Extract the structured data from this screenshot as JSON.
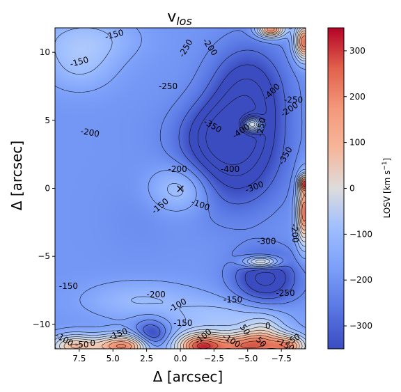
{
  "chart_data": {
    "type": "heatmap",
    "title": "v",
    "title_subscript": "los",
    "xlabel": "Δ [arcsec]",
    "ylabel": "Δ [arcsec]",
    "xlim": [
      9.3,
      -9.3
    ],
    "ylim": [
      -11.8,
      11.8
    ],
    "x_ticks": [
      7.5,
      5.0,
      2.5,
      0.0,
      -2.5,
      -5.0,
      -7.5
    ],
    "x_tick_labels": [
      "7.5",
      "5.0",
      "2.5",
      "0.0",
      "−2.5",
      "−5.0",
      "−7.5"
    ],
    "y_ticks": [
      10,
      5,
      0,
      -5,
      -10
    ],
    "y_tick_labels": [
      "10",
      "5",
      "0",
      "−5",
      "−10"
    ],
    "colormap": "coolwarm",
    "colorbar": {
      "label": "LOSV [km s",
      "label_sup": "−1",
      "label_end": "]",
      "range": [
        -350,
        350
      ],
      "ticks": [
        300,
        200,
        100,
        0,
        -100,
        -200,
        -300
      ],
      "tick_labels": [
        "300",
        "200",
        "100",
        "0",
        "−100",
        "−200",
        "−300"
      ]
    },
    "center_marker": {
      "x": 0,
      "y": 0,
      "symbol": "×"
    },
    "contour_labels": [
      {
        "text": "-150",
        "x": 4.9,
        "y": 11.3,
        "angle": -15
      },
      {
        "text": "-250",
        "x": -0.4,
        "y": 10.3,
        "angle": -60
      },
      {
        "text": "-200",
        "x": -2.2,
        "y": 10.4,
        "angle": 55
      },
      {
        "text": "-150",
        "x": 7.5,
        "y": 9.3,
        "angle": -15
      },
      {
        "text": "-250",
        "x": 0.9,
        "y": 7.5,
        "angle": 0
      },
      {
        "text": "-400",
        "x": -6.8,
        "y": 7.1,
        "angle": -45
      },
      {
        "text": "-250",
        "x": -8.4,
        "y": 6.5,
        "angle": 0
      },
      {
        "text": "-200",
        "x": -8.1,
        "y": 5.8,
        "angle": -35
      },
      {
        "text": "-200",
        "x": 6.7,
        "y": 4.1,
        "angle": 10
      },
      {
        "text": "-350",
        "x": -2.4,
        "y": 4.6,
        "angle": 30
      },
      {
        "text": "-400",
        "x": -4.5,
        "y": 4.2,
        "angle": -35
      },
      {
        "text": "-250",
        "x": -6.0,
        "y": 4.5,
        "angle": -80
      },
      {
        "text": "-350",
        "x": -7.8,
        "y": 2.4,
        "angle": -60
      },
      {
        "text": "-200",
        "x": 0.2,
        "y": 1.4,
        "angle": 0
      },
      {
        "text": "-400",
        "x": -3.7,
        "y": 1.4,
        "angle": 0
      },
      {
        "text": "-300",
        "x": -5.5,
        "y": 0.1,
        "angle": -20
      },
      {
        "text": "-150",
        "x": 1.5,
        "y": -1.3,
        "angle": -40
      },
      {
        "text": "-100",
        "x": -1.5,
        "y": -1.2,
        "angle": 20
      },
      {
        "text": "-300",
        "x": -6.4,
        "y": -3.9,
        "angle": 0
      },
      {
        "text": "-200",
        "x": -8.5,
        "y": -3.3,
        "angle": 85
      },
      {
        "text": "-150",
        "x": 8.3,
        "y": -7.2,
        "angle": 0
      },
      {
        "text": "-200",
        "x": 1.8,
        "y": -7.8,
        "angle": 0
      },
      {
        "text": "-150",
        "x": -3.9,
        "y": -8.2,
        "angle": 0
      },
      {
        "text": "-250",
        "x": -7.8,
        "y": -7.7,
        "angle": 0
      },
      {
        "text": "-100",
        "x": 0.2,
        "y": -8.6,
        "angle": -30
      },
      {
        "text": "-150",
        "x": -0.2,
        "y": -9.9,
        "angle": 0
      },
      {
        "text": "-100",
        "x": 8.6,
        "y": -11.1,
        "angle": 30
      },
      {
        "text": "-50",
        "x": 7.3,
        "y": -11.5,
        "angle": 0
      },
      {
        "text": "0",
        "x": 6.5,
        "y": -11.4,
        "angle": 0
      },
      {
        "text": "-150",
        "x": 4.6,
        "y": -10.7,
        "angle": -20
      },
      {
        "text": "-100",
        "x": -1.7,
        "y": -10.9,
        "angle": -40
      },
      {
        "text": "-100",
        "x": -3.8,
        "y": -11.2,
        "angle": 30
      },
      {
        "text": "50",
        "x": -4.8,
        "y": -10.4,
        "angle": 55
      },
      {
        "text": "0",
        "x": -6.5,
        "y": -10.1,
        "angle": 0
      },
      {
        "text": "50",
        "x": -6.0,
        "y": -11.3,
        "angle": 45
      },
      {
        "text": "-50",
        "x": -8.4,
        "y": -11.1,
        "angle": -30
      },
      {
        "text": "-150",
        "x": -7.8,
        "y": -11.5,
        "angle": 30
      }
    ],
    "field_features": [
      {
        "x": -5.0,
        "y": 7.0,
        "value": -400,
        "sx": 1.9,
        "sy": 2.4
      },
      {
        "x": -4.0,
        "y": 2.2,
        "value": -400,
        "sx": 2.4,
        "sy": 2.6
      },
      {
        "x": -3.0,
        "y": 4.0,
        "value": -350,
        "sx": 2.0,
        "sy": 1.6
      },
      {
        "x": 2.0,
        "y": 4.5,
        "value": -230,
        "sx": 2.0,
        "sy": 1.5
      },
      {
        "x": 3.0,
        "y": -2.0,
        "value": -240,
        "sx": 2.0,
        "sy": 2.2
      },
      {
        "x": -6.3,
        "y": -6.6,
        "value": -420,
        "sx": 1.6,
        "sy": 1.3
      },
      {
        "x": 2.2,
        "y": -11.0,
        "value": -420,
        "sx": 0.9,
        "sy": 0.9
      },
      {
        "x": -5.3,
        "y": 4.7,
        "value": 250,
        "sx": 0.5,
        "sy": 0.4
      },
      {
        "x": 0.0,
        "y": 0.0,
        "value": -110,
        "sx": 1.6,
        "sy": 1.2
      },
      {
        "x": 7.0,
        "y": 11.0,
        "value": -140,
        "sx": 2.6,
        "sy": 1.2
      },
      {
        "x": 7.5,
        "y": 9.0,
        "value": -150,
        "sx": 1.8,
        "sy": 1.3
      },
      {
        "x": 3.0,
        "y": -8.2,
        "value": -150,
        "sx": 3.0,
        "sy": 1.0
      },
      {
        "x": -3.5,
        "y": -9.5,
        "value": -130,
        "sx": 3.0,
        "sy": 1.0
      },
      {
        "x": 8.0,
        "y": -11.6,
        "value": 80,
        "sx": 1.2,
        "sy": 0.6
      },
      {
        "x": 4.2,
        "y": -11.6,
        "value": 220,
        "sx": 1.6,
        "sy": 0.6
      },
      {
        "x": -1.5,
        "y": -11.6,
        "value": 280,
        "sx": 1.3,
        "sy": 0.7
      },
      {
        "x": -4.7,
        "y": -11.6,
        "value": 170,
        "sx": 1.4,
        "sy": 0.7
      },
      {
        "x": -6.2,
        "y": -11.0,
        "value": -30,
        "sx": 1.0,
        "sy": 1.0
      },
      {
        "x": -8.0,
        "y": -11.6,
        "value": 150,
        "sx": 1.0,
        "sy": 0.6
      },
      {
        "x": -9.2,
        "y": -1.7,
        "value": 250,
        "sx": 0.4,
        "sy": 1.6
      },
      {
        "x": -9.2,
        "y": 10.8,
        "value": 250,
        "sx": 0.5,
        "sy": 0.9
      },
      {
        "x": -6.7,
        "y": 11.7,
        "value": 200,
        "sx": 0.7,
        "sy": 0.4
      },
      {
        "x": -9.2,
        "y": 0.4,
        "value": 150,
        "sx": 0.3,
        "sy": 0.4
      },
      {
        "x": -6.0,
        "y": -5.4,
        "value": 100,
        "sx": 0.9,
        "sy": 0.3
      }
    ],
    "field_background": -225
  }
}
